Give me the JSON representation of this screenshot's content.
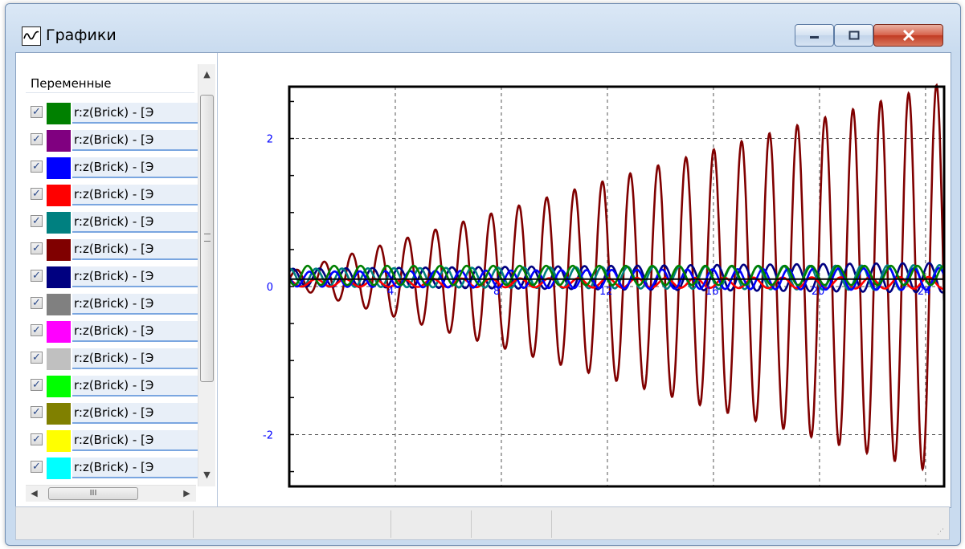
{
  "window": {
    "title": "Графики",
    "icon": "chart-window-icon"
  },
  "panel": {
    "header": "Переменные",
    "hscroll_grip": "III",
    "items": [
      {
        "label": "r:z(Brick) - [Э",
        "color": "#008000",
        "checked": "✓"
      },
      {
        "label": "r:z(Brick) - [Э",
        "color": "#800080",
        "checked": "✓"
      },
      {
        "label": "r:z(Brick) - [Э",
        "color": "#0000ff",
        "checked": "✓"
      },
      {
        "label": "r:z(Brick) - [Э",
        "color": "#ff0000",
        "checked": "✓"
      },
      {
        "label": "r:z(Brick) - [Э",
        "color": "#008080",
        "checked": "✓"
      },
      {
        "label": "r:z(Brick) - [Э",
        "color": "#800000",
        "checked": "✓"
      },
      {
        "label": "r:z(Brick) - [Э",
        "color": "#000080",
        "checked": "✓"
      },
      {
        "label": "r:z(Brick) - [Э",
        "color": "#808080",
        "checked": "✓"
      },
      {
        "label": "r:z(Brick) - [Э",
        "color": "#ff00ff",
        "checked": "✓"
      },
      {
        "label": "r:z(Brick) - [Э",
        "color": "#c0c0c0",
        "checked": "✓"
      },
      {
        "label": "r:z(Brick) - [Э",
        "color": "#00ff00",
        "checked": "✓"
      },
      {
        "label": "r:z(Brick) - [Э",
        "color": "#808000",
        "checked": "✓"
      },
      {
        "label": "r:z(Brick) - [Э",
        "color": "#ffff00",
        "checked": "✓"
      },
      {
        "label": "r:z(Brick) - [Э",
        "color": "#00ffff",
        "checked": "✓"
      }
    ]
  },
  "chart_data": {
    "type": "line",
    "xlim": [
      0,
      24.7
    ],
    "ylim": [
      -2.7,
      2.7
    ],
    "x_ticks": [
      "4",
      "8",
      "12",
      "16",
      "20",
      "24"
    ],
    "y_ticks": [
      "2",
      "0",
      "-2"
    ],
    "grid": "dashed",
    "series": [
      {
        "color": "#800000",
        "amplitude_start": 0.1,
        "amplitude_end": 2.65,
        "period": 1.05,
        "offset": 0.1
      },
      {
        "color": "#000080",
        "amplitude_start": 0.12,
        "amplitude_end": 0.2,
        "period": 1.0,
        "offset": 0.12
      },
      {
        "color": "#008080",
        "amplitude_start": 0.12,
        "amplitude_end": 0.17,
        "period": 0.98,
        "offset": 0.12
      },
      {
        "color": "#ff0000",
        "amplitude_start": 0.05,
        "amplitude_end": 0.08,
        "period": 1.1,
        "offset": 0.05
      },
      {
        "color": "#0000ff",
        "amplitude_start": 0.1,
        "amplitude_end": 0.15,
        "period": 0.95,
        "offset": 0.1
      },
      {
        "color": "#008000",
        "amplitude_start": 0.13,
        "amplitude_end": 0.13,
        "period": 1.0,
        "offset": 0.15
      }
    ]
  }
}
